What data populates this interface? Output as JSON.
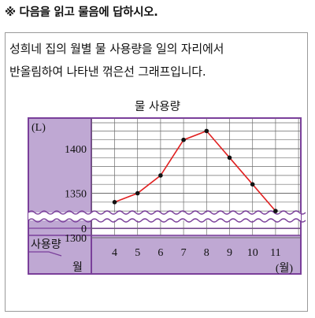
{
  "instruction": "※ 다음을 읽고 물음에 답하시오.",
  "question": {
    "line1": "성희네 집의 월별 물 사용량을 일의 자리에서",
    "line2": "반올림하여 나타낸 꺾은선 그래프입니다."
  },
  "chart_data": {
    "type": "line",
    "title": "물 사용량",
    "unit_y": "(L)",
    "unit_x": "(월)",
    "row_header_top": "사용량",
    "row_header_bottom": "월",
    "categories": [
      "4",
      "5",
      "6",
      "7",
      "8",
      "9",
      "10",
      "11"
    ],
    "values": [
      1340,
      1350,
      1370,
      1410,
      1420,
      1390,
      1360,
      1330
    ],
    "yticks": [
      "1400",
      "1350",
      "1300",
      "0"
    ],
    "ylim": [
      1300,
      1450
    ],
    "axis_break": true,
    "grid": true
  },
  "colors": {
    "frame": "#7a3f9a",
    "header_fill": "#bfa8d3",
    "line": "#e02020",
    "marker": "#111111",
    "grid": "#6d6d6d"
  }
}
